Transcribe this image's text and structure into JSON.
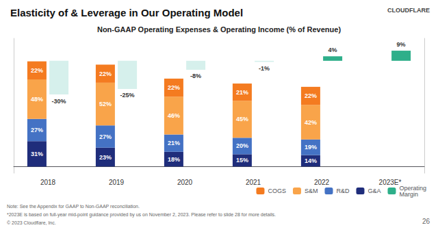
{
  "chart_data": {
    "type": "bar",
    "title": "Elasticity of & Leverage in Our Operating Model",
    "subtitle": "Non-GAAP Operating Expenses & Operating Income (% of Revenue)",
    "categories": [
      "2018",
      "2019",
      "2020",
      "2021",
      "2022",
      "2023E*"
    ],
    "stacked": true,
    "data_labels": true,
    "grid": false,
    "legend": "lower right",
    "tick_labels": "x",
    "ylim": [
      -8,
      156
    ],
    "y2lim": [
      -100,
      20
    ],
    "series": [
      {
        "name": "G&A",
        "color": "#1F2D7B",
        "values": [
          31,
          23,
          18,
          15,
          14,
          null
        ],
        "value_labels": [
          "31%",
          "23%",
          "18%",
          "15%",
          "14%",
          null
        ]
      },
      {
        "name": "R&D",
        "color": "#4472C4",
        "values": [
          27,
          27,
          21,
          20,
          19,
          null
        ],
        "value_labels": [
          "27%",
          "27%",
          "21%",
          "20%",
          "19%",
          null
        ]
      },
      {
        "name": "S&M",
        "color": "#F9A44A",
        "values": [
          48,
          52,
          46,
          45,
          42,
          null
        ],
        "value_labels": [
          "48%",
          "52%",
          "46%",
          "45%",
          "42%",
          null
        ]
      },
      {
        "name": "COGS",
        "color": "#F47B20",
        "values": [
          22,
          22,
          22,
          21,
          22,
          null
        ],
        "value_labels": [
          "22%",
          "22%",
          "22%",
          "21%",
          "22%",
          null
        ]
      },
      {
        "name": "Operating\nMargin",
        "axis": "y2",
        "color": "#2EAF8A",
        "colors": [
          "#D6F0EC",
          "#D6F0EC",
          "#D6F0EC",
          "#D6F0EC",
          "#2EAF8A",
          "#2EAF8A"
        ],
        "values": [
          -30,
          -25,
          -8,
          -1,
          4,
          9
        ],
        "value_labels": [
          "-30%",
          "-25%",
          "-8%",
          "-1%",
          "4%",
          "9%"
        ]
      }
    ],
    "annotations": [
      "Note: See the Appendix for GAAP to Non-GAAP reconciliation.",
      "*2023E is based on full-year mid-point guidance provided by us on November 2, 2023. Please refer to slide 28 for more details.",
      "© 2023 Cloudflare, Inc.",
      "26",
      "CLOUDFLARE"
    ]
  }
}
